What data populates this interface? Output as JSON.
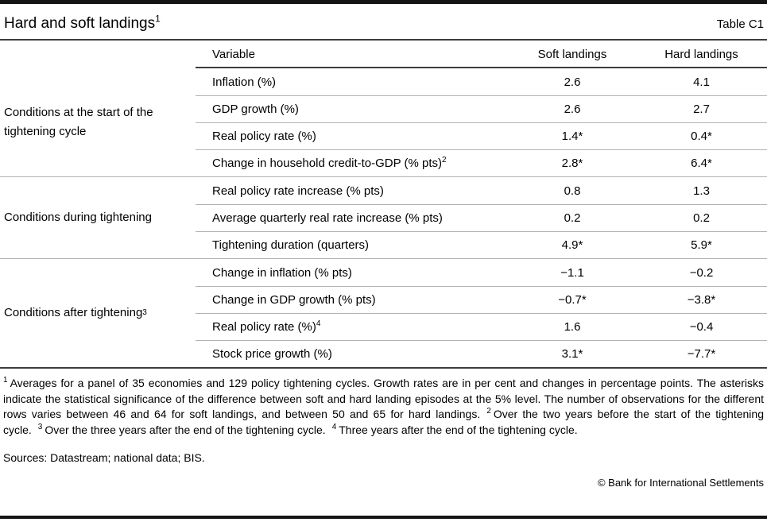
{
  "header": {
    "title": "Hard and soft landings",
    "title_sup": "1",
    "table_tag": "Table C1"
  },
  "table": {
    "columns": {
      "variable": "Variable",
      "soft": "Soft landings",
      "hard": "Hard landings"
    },
    "groups": [
      {
        "label": "Conditions at the start of the tightening cycle",
        "label_sup": "",
        "rows": [
          {
            "variable": "Inflation (%)",
            "variable_sup": "",
            "soft": "2.6",
            "hard": "4.1"
          },
          {
            "variable": "GDP growth (%)",
            "variable_sup": "",
            "soft": "2.6",
            "hard": "2.7"
          },
          {
            "variable": "Real policy rate (%)",
            "variable_sup": "",
            "soft": "1.4*",
            "hard": "0.4*"
          },
          {
            "variable": "Change in household credit-to-GDP (% pts)",
            "variable_sup": "2",
            "soft": "2.8*",
            "hard": "6.4*"
          }
        ]
      },
      {
        "label": "Conditions during tightening",
        "label_sup": "",
        "rows": [
          {
            "variable": "Real policy rate increase (% pts)",
            "variable_sup": "",
            "soft": "0.8",
            "hard": "1.3"
          },
          {
            "variable": "Average quarterly real rate increase (% pts)",
            "variable_sup": "",
            "soft": "0.2",
            "hard": "0.2"
          },
          {
            "variable": "Tightening duration (quarters)",
            "variable_sup": "",
            "soft": "4.9*",
            "hard": "5.9*"
          }
        ]
      },
      {
        "label": "Conditions after tightening",
        "label_sup": "3",
        "rows": [
          {
            "variable": "Change in inflation (% pts)",
            "variable_sup": "",
            "soft": "−1.1",
            "hard": "−0.2"
          },
          {
            "variable": "Change in GDP growth (% pts)",
            "variable_sup": "",
            "soft": "−0.7*",
            "hard": "−3.8*"
          },
          {
            "variable": "Real policy rate (%)",
            "variable_sup": "4",
            "soft": "1.6",
            "hard": "−0.4"
          },
          {
            "variable": "Stock price growth (%)",
            "variable_sup": "",
            "soft": "3.1*",
            "hard": "−7.7*"
          }
        ]
      }
    ]
  },
  "footnotes": [
    {
      "marker": "1",
      "text": "Averages for a panel of 35 economies and 129 policy tightening cycles. Growth rates are in per cent and changes in percentage points. The asterisks indicate the statistical significance of the difference between soft and hard landing episodes at the 5% level. The number of observations for the different rows varies between 46 and 64 for soft landings, and between 50 and 65 for hard landings."
    },
    {
      "marker": "2",
      "text": "Over the two years before the start of the tightening cycle."
    },
    {
      "marker": "3",
      "text": "Over the three years after the end of the tightening cycle."
    },
    {
      "marker": "4",
      "text": "Three years after the end of the tightening cycle."
    }
  ],
  "sources": "Sources: Datastream; national data; BIS.",
  "copyright": "© Bank for International Settlements",
  "colors": {
    "rule_dark": "#3d3d3d",
    "rule_light": "#b3b3b3",
    "bar_black": "#141414",
    "text": "#000000"
  }
}
